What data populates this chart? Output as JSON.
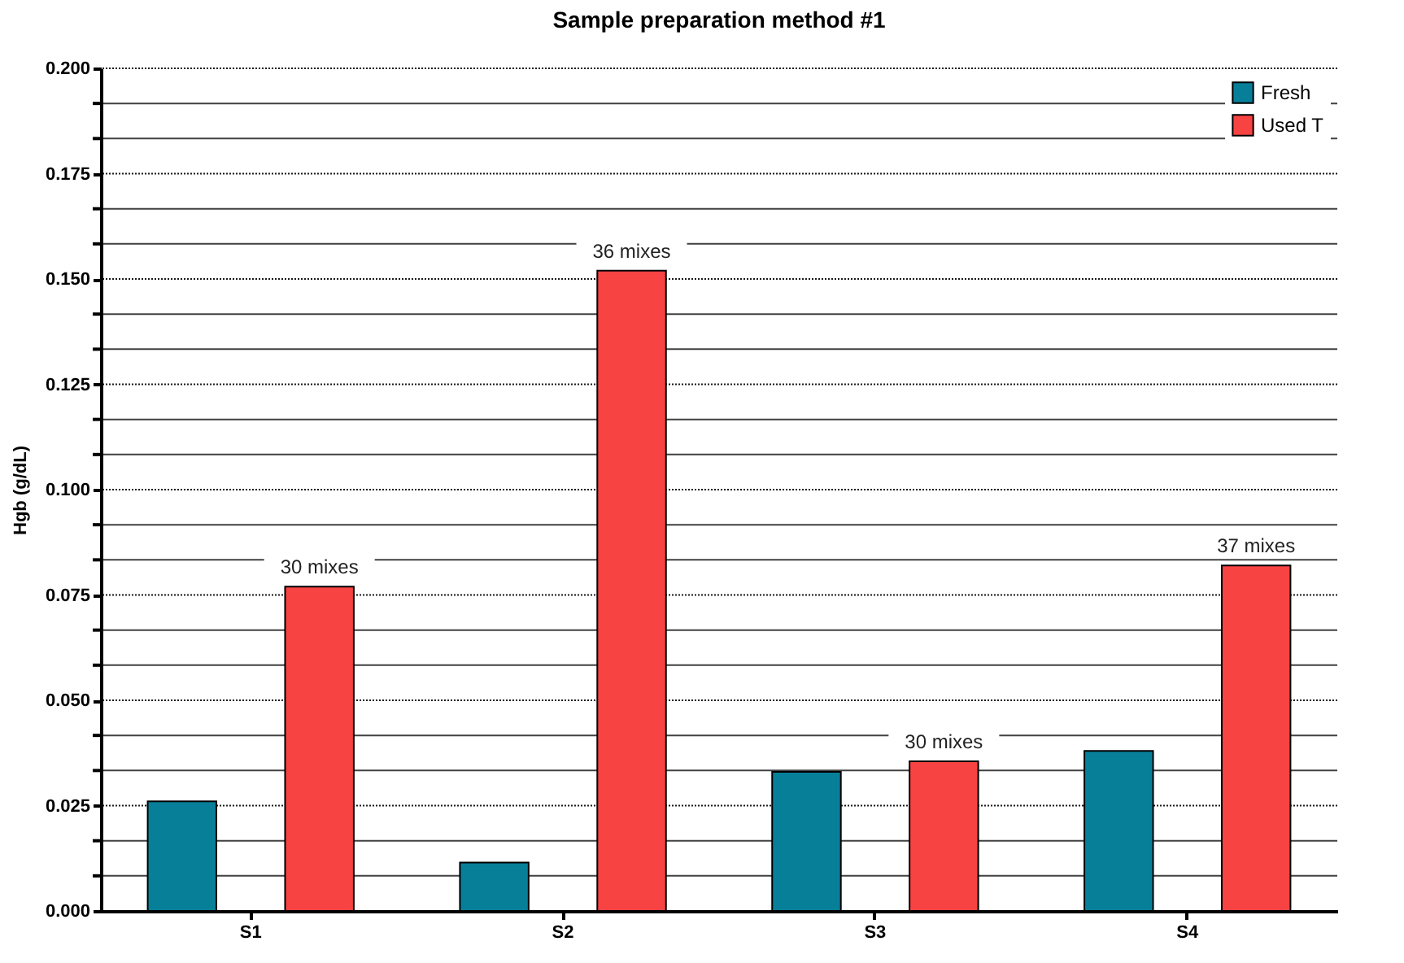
{
  "chart_data": {
    "type": "bar",
    "title": "Sample preparation method #1",
    "ylabel": "Hgb (g/dL)",
    "categories": [
      "S1",
      "S2",
      "S3",
      "S4"
    ],
    "series": [
      {
        "name": "Fresh",
        "color": "#087f99",
        "values": [
          0.026,
          0.0115,
          0.033,
          0.038
        ]
      },
      {
        "name": "Used T",
        "color": "#f84343",
        "values": [
          0.077,
          0.152,
          0.0355,
          0.082
        ]
      }
    ],
    "ylim": [
      0,
      0.2
    ],
    "yticks": [
      {
        "value": 0,
        "label": "0.000"
      },
      {
        "value": 0.008333,
        "label": null
      },
      {
        "value": 0.016667,
        "label": null
      },
      {
        "value": 0.025,
        "label": "0.025"
      },
      {
        "value": 0.033333,
        "label": null
      },
      {
        "value": 0.041667,
        "label": null
      },
      {
        "value": 0.05,
        "label": "0.050"
      },
      {
        "value": 0.058333,
        "label": null
      },
      {
        "value": 0.066667,
        "label": null
      },
      {
        "value": 0.075,
        "label": "0.075"
      },
      {
        "value": 0.083333,
        "label": null
      },
      {
        "value": 0.091667,
        "label": null
      },
      {
        "value": 0.1,
        "label": "0.100"
      },
      {
        "value": 0.108333,
        "label": null
      },
      {
        "value": 0.116667,
        "label": null
      },
      {
        "value": 0.125,
        "label": "0.125"
      },
      {
        "value": 0.133333,
        "label": null
      },
      {
        "value": 0.141667,
        "label": null
      },
      {
        "value": 0.15,
        "label": "0.150"
      },
      {
        "value": 0.158333,
        "label": null
      },
      {
        "value": 0.166667,
        "label": null
      },
      {
        "value": 0.175,
        "label": "0.175"
      },
      {
        "value": 0.183333,
        "label": null
      },
      {
        "value": 0.191667,
        "label": null
      },
      {
        "value": 0.2,
        "label": "0.200"
      }
    ],
    "grid": "y",
    "legend": "top right",
    "annotations": [
      "30 mixes",
      "36 mixes",
      "30 mixes",
      "37 mixes"
    ]
  }
}
